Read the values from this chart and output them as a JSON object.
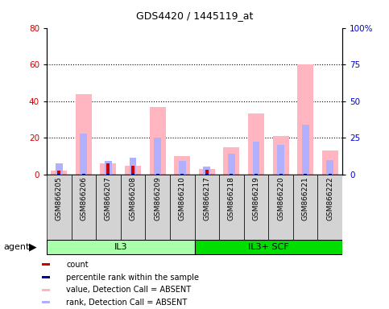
{
  "title": "GDS4420 / 1445119_at",
  "samples": [
    "GSM866205",
    "GSM866206",
    "GSM866207",
    "GSM866208",
    "GSM866209",
    "GSM866210",
    "GSM866217",
    "GSM866218",
    "GSM866219",
    "GSM866220",
    "GSM866221",
    "GSM866222"
  ],
  "groups": [
    {
      "label": "IL3",
      "start": 0,
      "end": 6,
      "color": "#aaffaa"
    },
    {
      "label": "IL3+ SCF",
      "start": 6,
      "end": 12,
      "color": "#00dd00"
    }
  ],
  "pink_bars": [
    2.0,
    44.0,
    6.0,
    5.0,
    37.0,
    10.0,
    3.0,
    15.0,
    33.5,
    21.0,
    60.0,
    13.0
  ],
  "blue_bars": [
    6.0,
    22.5,
    7.5,
    9.0,
    20.0,
    7.5,
    4.5,
    11.5,
    18.0,
    16.0,
    27.0,
    8.0
  ],
  "red_bars": [
    2.0,
    0.5,
    6.0,
    5.0,
    0.5,
    0.5,
    2.5,
    0.5,
    0.5,
    0.5,
    0.5,
    0.5
  ],
  "dark_blue_bars": [
    0.3,
    0.3,
    0.3,
    0.3,
    0.3,
    0.3,
    0.3,
    0.3,
    0.3,
    0.3,
    0.3,
    0.3
  ],
  "ylim_left": [
    0,
    80
  ],
  "ylim_right": [
    0,
    100
  ],
  "yticks_left": [
    0,
    20,
    40,
    60,
    80
  ],
  "yticks_right": [
    0,
    25,
    50,
    75,
    100
  ],
  "ytick_labels_right": [
    "0",
    "25",
    "50",
    "75",
    "100%"
  ],
  "bar_width": 0.65,
  "cell_bg": "#d3d3d3",
  "plot_bg": "#ffffff",
  "legend_items": [
    {
      "label": "count",
      "color": "#cc0000"
    },
    {
      "label": "percentile rank within the sample",
      "color": "#000099"
    },
    {
      "label": "value, Detection Call = ABSENT",
      "color": "#ffb6c1"
    },
    {
      "label": "rank, Detection Call = ABSENT",
      "color": "#b0b0ff"
    }
  ],
  "left_color": "#cc0000",
  "right_color": "#0000cc",
  "grid_lines": [
    20,
    40,
    60
  ]
}
